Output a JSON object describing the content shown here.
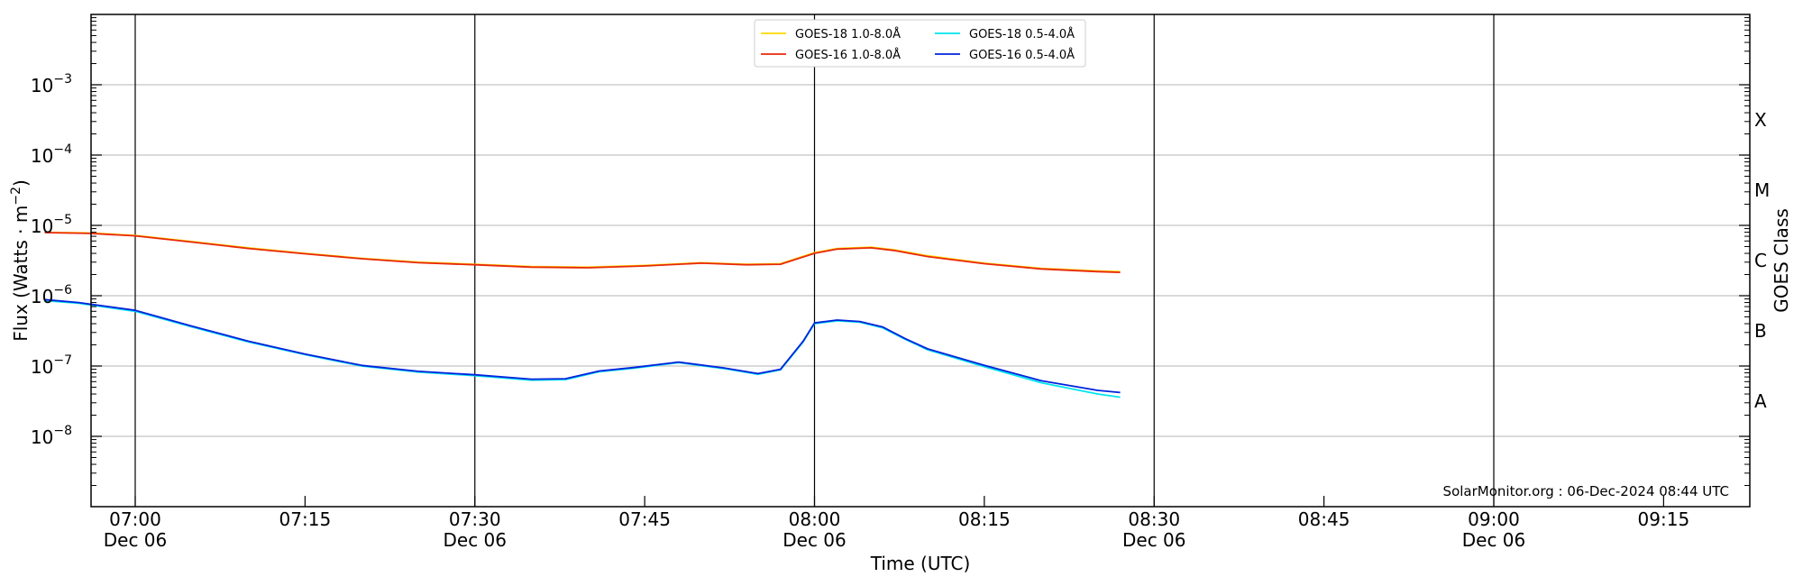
{
  "chart_data": {
    "type": "line",
    "title": "",
    "xlabel": "Time (UTC)",
    "ylabel": "Flux (Watts · m⁻²)",
    "ylabel_parts": {
      "base": "Flux (Watts · m",
      "exp": "−2",
      "close": ")"
    },
    "right_ylabel": "GOES Class",
    "y_scale": "log",
    "ylim": [
      "1e-9",
      "1e-2"
    ],
    "xlim": [
      "06:52",
      "09:23"
    ],
    "date": "Dec 06",
    "x_ticks": [
      {
        "t": "07:00",
        "label": "07:00",
        "sublabel": "Dec 06"
      },
      {
        "t": "07:15",
        "label": "07:15",
        "sublabel": ""
      },
      {
        "t": "07:30",
        "label": "07:30",
        "sublabel": "Dec 06"
      },
      {
        "t": "07:45",
        "label": "07:45",
        "sublabel": ""
      },
      {
        "t": "08:00",
        "label": "08:00",
        "sublabel": "Dec 06"
      },
      {
        "t": "08:15",
        "label": "08:15",
        "sublabel": ""
      },
      {
        "t": "08:30",
        "label": "08:30",
        "sublabel": "Dec 06"
      },
      {
        "t": "08:45",
        "label": "08:45",
        "sublabel": ""
      },
      {
        "t": "09:00",
        "label": "09:00",
        "sublabel": "Dec 06"
      },
      {
        "t": "09:15",
        "label": "09:15",
        "sublabel": ""
      }
    ],
    "vertical_lines": [
      "07:00",
      "07:30",
      "08:00",
      "08:30",
      "09:00"
    ],
    "y_ticks": [
      {
        "exp": -8,
        "label": "10",
        "sup": "−8"
      },
      {
        "exp": -7,
        "label": "10",
        "sup": "−7"
      },
      {
        "exp": -6,
        "label": "10",
        "sup": "−6"
      },
      {
        "exp": -5,
        "label": "10",
        "sup": "−5"
      },
      {
        "exp": -4,
        "label": "10",
        "sup": "−4"
      },
      {
        "exp": -3,
        "label": "10",
        "sup": "−3"
      }
    ],
    "goes_classes": [
      {
        "label": "A",
        "exp": -7.5
      },
      {
        "label": "B",
        "exp": -6.5
      },
      {
        "label": "C",
        "exp": -5.5
      },
      {
        "label": "M",
        "exp": -4.5
      },
      {
        "label": "X",
        "exp": -3.5
      }
    ],
    "grid": true,
    "legend_position": "top-center",
    "series": [
      {
        "name": "GOES-18 1.0-8.0Å",
        "color": "#ffd700",
        "x": [
          "06:52",
          "06:56",
          "07:00",
          "07:05",
          "07:10",
          "07:15",
          "07:20",
          "07:25",
          "07:30",
          "07:35",
          "07:40",
          "07:45",
          "07:50",
          "07:54",
          "07:57",
          "08:00",
          "08:02",
          "08:05",
          "08:07",
          "08:10",
          "08:15",
          "08:20",
          "08:25",
          "08:27"
        ],
        "y": [
          "8.0e-6",
          "7.8e-6",
          "7.2e-6",
          "5.9e-6",
          "4.8e-6",
          "4.0e-6",
          "3.4e-6",
          "3.0e-6",
          "2.8e-6",
          "2.6e-6",
          "2.55e-6",
          "2.7e-6",
          "2.95e-6",
          "2.8e-6",
          "2.85e-6",
          "4.1e-6",
          "4.7e-6",
          "4.9e-6",
          "4.5e-6",
          "3.7e-6",
          "2.9e-6",
          "2.45e-6",
          "2.25e-6",
          "2.2e-6"
        ]
      },
      {
        "name": "GOES-16 1.0-8.0Å",
        "color": "#e8290b",
        "x": [
          "06:52",
          "06:56",
          "07:00",
          "07:05",
          "07:10",
          "07:15",
          "07:20",
          "07:25",
          "07:30",
          "07:35",
          "07:40",
          "07:45",
          "07:50",
          "07:54",
          "07:57",
          "08:00",
          "08:02",
          "08:05",
          "08:07",
          "08:10",
          "08:15",
          "08:20",
          "08:25",
          "08:27"
        ],
        "y": [
          "7.9e-6",
          "7.7e-6",
          "7.1e-6",
          "5.8e-6",
          "4.7e-6",
          "3.95e-6",
          "3.35e-6",
          "2.95e-6",
          "2.75e-6",
          "2.55e-6",
          "2.5e-6",
          "2.65e-6",
          "2.9e-6",
          "2.75e-6",
          "2.8e-6",
          "4.0e-6",
          "4.6e-6",
          "4.8e-6",
          "4.4e-6",
          "3.6e-6",
          "2.85e-6",
          "2.4e-6",
          "2.2e-6",
          "2.15e-6"
        ]
      },
      {
        "name": "GOES-18 0.5-4.0Å",
        "color": "#00e5ee",
        "x": [
          "06:52",
          "06:55",
          "07:00",
          "07:05",
          "07:10",
          "07:15",
          "07:20",
          "07:25",
          "07:30",
          "07:35",
          "07:38",
          "07:41",
          "07:44",
          "07:48",
          "07:52",
          "07:55",
          "07:57",
          "07:59",
          "08:00",
          "08:02",
          "08:04",
          "08:06",
          "08:08",
          "08:10",
          "08:15",
          "08:20",
          "08:25",
          "08:27"
        ],
        "y": [
          "8.5e-7",
          "7.8e-7",
          "6.0e-7",
          "3.6e-7",
          "2.2e-7",
          "1.45e-7",
          "1.0e-7",
          "8.2e-8",
          "7.3e-8",
          "6.3e-8",
          "6.4e-8",
          "8.3e-8",
          "9.3e-8",
          "1.12e-7",
          "9.2e-8",
          "7.6e-8",
          "8.8e-8",
          "2.2e-7",
          "4.0e-7",
          "4.4e-7",
          "4.2e-7",
          "3.5e-7",
          "2.4e-7",
          "1.7e-7",
          "9.8e-8",
          "5.8e-8",
          "4.0e-8",
          "3.6e-8"
        ]
      },
      {
        "name": "GOES-16 0.5-4.0Å",
        "color": "#0022dd",
        "x": [
          "06:52",
          "06:55",
          "07:00",
          "07:05",
          "07:10",
          "07:15",
          "07:20",
          "07:25",
          "07:30",
          "07:35",
          "07:38",
          "07:41",
          "07:44",
          "07:48",
          "07:52",
          "07:55",
          "07:57",
          "07:59",
          "08:00",
          "08:02",
          "08:04",
          "08:06",
          "08:08",
          "08:10",
          "08:15",
          "08:20",
          "08:25",
          "08:27"
        ],
        "y": [
          "8.8e-7",
          "8.0e-7",
          "6.2e-7",
          "3.7e-7",
          "2.25e-7",
          "1.48e-7",
          "1.02e-7",
          "8.4e-8",
          "7.5e-8",
          "6.5e-8",
          "6.6e-8",
          "8.5e-8",
          "9.5e-8",
          "1.14e-7",
          "9.4e-8",
          "7.8e-8",
          "9.0e-8",
          "2.25e-7",
          "4.1e-7",
          "4.5e-7",
          "4.3e-7",
          "3.6e-7",
          "2.45e-7",
          "1.75e-7",
          "1.02e-7",
          "6.2e-8",
          "4.5e-8",
          "4.2e-8"
        ]
      }
    ]
  },
  "credit": "SolarMonitor.org : 06-Dec-2024 08:44 UTC"
}
